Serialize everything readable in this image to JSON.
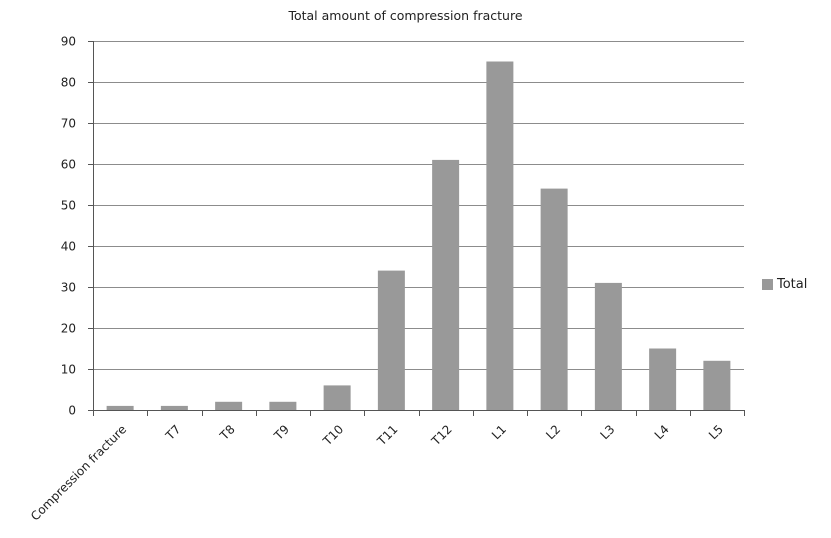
{
  "chart_data": {
    "type": "bar",
    "title": "Total amount of compression fracture",
    "xlabel": "",
    "ylabel": "",
    "categories": [
      "Compression fracture",
      "T7",
      "T8",
      "T9",
      "T10",
      "T11",
      "T12",
      "L1",
      "L2",
      "L3",
      "L4",
      "L5"
    ],
    "series": [
      {
        "name": "Total",
        "values": [
          1,
          1,
          2,
          2,
          6,
          34,
          61,
          85,
          54,
          31,
          15,
          12
        ]
      }
    ],
    "ylim": [
      0,
      90
    ],
    "yticks": [
      0,
      10,
      20,
      30,
      40,
      50,
      60,
      70,
      80,
      90
    ],
    "grid": true,
    "legend_position": "right",
    "colors": {
      "bar": "#999999",
      "grid": "#8c8c8c",
      "axis": "#555555",
      "text": "#222222"
    }
  }
}
